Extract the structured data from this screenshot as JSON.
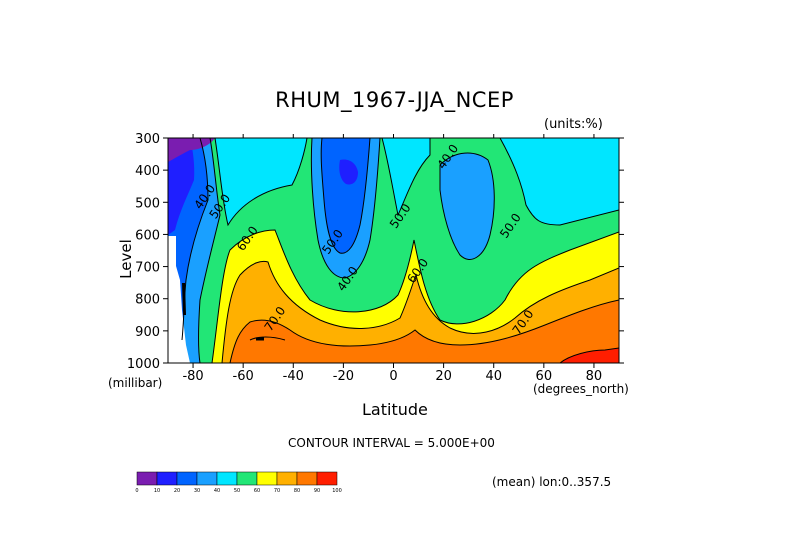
{
  "chart_data": {
    "type": "heatmap",
    "title": "RHUM_1967-JJA_NCEP",
    "units_note": "(units:%)",
    "xlabel": "Latitude",
    "ylabel": "Level",
    "x_unit": "(degrees_north)",
    "y_unit": "(millibar)",
    "xlim": [
      -90,
      90
    ],
    "ylim": [
      300,
      1000
    ],
    "x_ticks": [
      -80,
      -60,
      -40,
      -20,
      0,
      20,
      40,
      60,
      80
    ],
    "y_ticks": [
      300,
      400,
      500,
      600,
      700,
      800,
      900,
      1000
    ],
    "y_inverted": true,
    "contour_interval_text": "CONTOUR INTERVAL = 5.000E+00",
    "mean_note": "(mean) lon:0..357.5",
    "contour_labels": [
      {
        "text": "40.0",
        "lat": -74,
        "lev": 490
      },
      {
        "text": "50.0",
        "lat": -68,
        "lev": 520
      },
      {
        "text": "60.0",
        "lat": -57,
        "lev": 620
      },
      {
        "text": "70.0",
        "lat": -46,
        "lev": 870
      },
      {
        "text": "50.0",
        "lat": -23,
        "lev": 630
      },
      {
        "text": "40.0",
        "lat": -17,
        "lev": 745
      },
      {
        "text": "50.0",
        "lat": 4,
        "lev": 550
      },
      {
        "text": "60.0",
        "lat": 11,
        "lev": 720
      },
      {
        "text": "40.0",
        "lat": 23,
        "lev": 365
      },
      {
        "text": "50.0",
        "lat": 48,
        "lev": 580
      },
      {
        "text": "70.0",
        "lat": 53,
        "lev": 880
      }
    ],
    "colorbar": {
      "ticks": [
        "0",
        "10",
        "20",
        "30",
        "40",
        "50",
        "60",
        "70",
        "80",
        "90",
        "100"
      ],
      "colors": [
        "#7a1db0",
        "#1f1fff",
        "#0064ff",
        "#1aa0ff",
        "#00e6ff",
        "#22e676",
        "#ffff00",
        "#ffb000",
        "#ff7800",
        "#ff1e00"
      ]
    }
  }
}
